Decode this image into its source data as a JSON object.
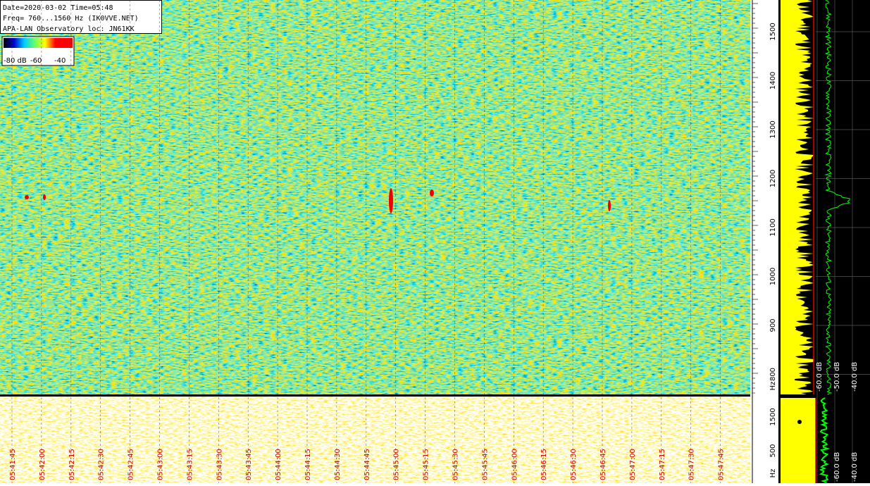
{
  "info_box": {
    "lines": [
      "Date=2020-03-02 Time=05:48",
      "Freq= 760...1560 Hz (IK0VVE.NET)",
      "APA-LAN Observatory loc: JN61KK"
    ]
  },
  "color_scale": {
    "labels": [
      "-80 dB",
      "-60",
      "-40"
    ]
  },
  "main_freq_axis": {
    "labels": [
      "1500",
      "1400",
      "1300",
      "1200",
      "1100",
      "1000",
      "900",
      "800",
      "Hz"
    ]
  },
  "main_level_axis": {
    "labels": [
      "-60.0 dB",
      "-50.0 dB",
      "-40.0 dB"
    ]
  },
  "lower_freq_axis": {
    "labels": [
      "1500",
      "500",
      "Hz"
    ]
  },
  "lower_level_axis": {
    "labels": [
      "-60.0 dB",
      "-40.0 dB"
    ]
  },
  "time_axis": {
    "labels": [
      "05:41:45",
      "05:42:00",
      "05:42:15",
      "05:42:30",
      "05:42:45",
      "05:43:00",
      "05:43:15",
      "05:43:30",
      "05:43:45",
      "05:44:00",
      "05:44:15",
      "05:44:30",
      "05:44:45",
      "05:45:00",
      "05:45:15",
      "05:45:30",
      "05:45:45",
      "05:46:00",
      "05:46:15",
      "05:46:30",
      "05:46:45",
      "05:47:00",
      "05:47:15",
      "05:47:30",
      "05:47:45"
    ]
  }
}
